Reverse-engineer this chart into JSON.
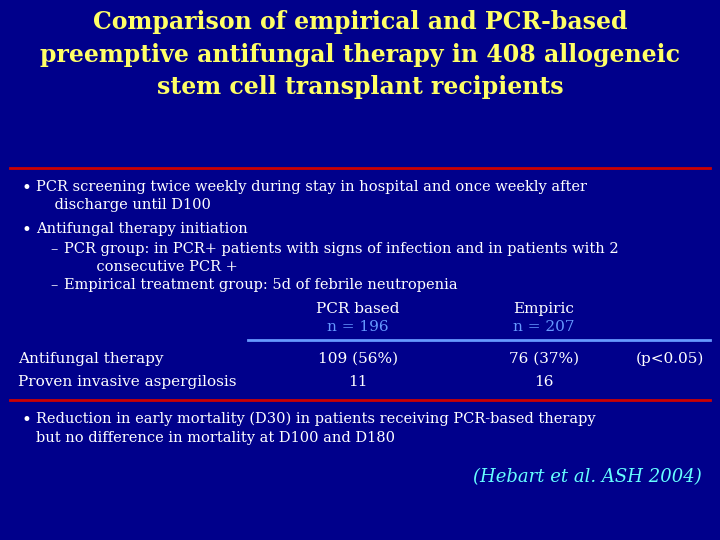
{
  "title_line1": "Comparison of empirical and PCR-based",
  "title_line2": "preemptive antifungal therapy in 408 allogeneic",
  "title_line3": "stem cell transplant recipients",
  "title_color": "#FFFF66",
  "bg_color": "#00008B",
  "text_color": "#FFFFFF",
  "bullet_color": "#FFFFFF",
  "divider_color": "#CC0000",
  "table_line_color": "#6699FF",
  "citation_color": "#66FFFF",
  "col1_header": "PCR based",
  "col1_sub": "n = 196",
  "col2_header": "Empiric",
  "col2_sub": "n = 207",
  "row1_label": "Antifungal therapy",
  "row1_col1": "109 (56%)",
  "row1_col2": "76 (37%)",
  "row1_col3": "(p<0.05)",
  "row2_label": "Proven invasive aspergilosis",
  "row2_col1": "11",
  "row2_col2": "16",
  "citation": "(Hebart et al. ASH 2004)"
}
